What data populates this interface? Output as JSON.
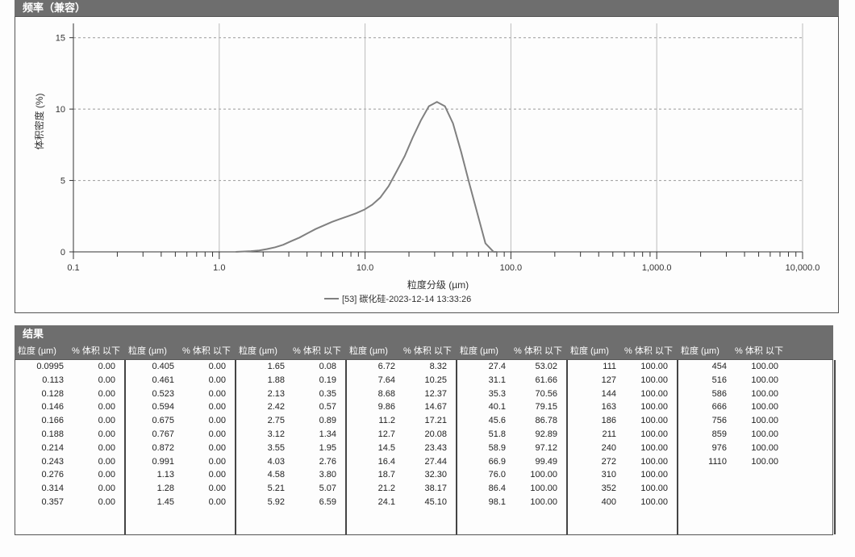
{
  "header": {
    "title": "频率（兼容）"
  },
  "results": {
    "title": "结果"
  },
  "table": {
    "col_size": "粒度 (µm)",
    "col_percent": "% 体积 以下",
    "columns": [
      {
        "sizes": [
          "0.0995",
          "0.113",
          "0.128",
          "0.146",
          "0.166",
          "0.188",
          "0.214",
          "0.243",
          "0.276",
          "0.314",
          "0.357"
        ],
        "values": [
          "0.00",
          "0.00",
          "0.00",
          "0.00",
          "0.00",
          "0.00",
          "0.00",
          "0.00",
          "0.00",
          "0.00",
          "0.00"
        ]
      },
      {
        "sizes": [
          "0.405",
          "0.461",
          "0.523",
          "0.594",
          "0.675",
          "0.767",
          "0.872",
          "0.991",
          "1.13",
          "1.28",
          "1.45"
        ],
        "values": [
          "0.00",
          "0.00",
          "0.00",
          "0.00",
          "0.00",
          "0.00",
          "0.00",
          "0.00",
          "0.00",
          "0.00",
          "0.00"
        ]
      },
      {
        "sizes": [
          "1.65",
          "1.88",
          "2.13",
          "2.42",
          "2.75",
          "3.12",
          "3.55",
          "4.03",
          "4.58",
          "5.21",
          "5.92"
        ],
        "values": [
          "0.08",
          "0.19",
          "0.35",
          "0.57",
          "0.89",
          "1.34",
          "1.95",
          "2.76",
          "3.80",
          "5.07",
          "6.59"
        ]
      },
      {
        "sizes": [
          "6.72",
          "7.64",
          "8.68",
          "9.86",
          "11.2",
          "12.7",
          "14.5",
          "16.4",
          "18.7",
          "21.2",
          "24.1"
        ],
        "values": [
          "8.32",
          "10.25",
          "12.37",
          "14.67",
          "17.21",
          "20.08",
          "23.43",
          "27.44",
          "32.30",
          "38.17",
          "45.10"
        ]
      },
      {
        "sizes": [
          "27.4",
          "31.1",
          "35.3",
          "40.1",
          "45.6",
          "51.8",
          "58.9",
          "66.9",
          "76.0",
          "86.4",
          "98.1"
        ],
        "values": [
          "53.02",
          "61.66",
          "70.56",
          "79.15",
          "86.78",
          "92.89",
          "97.12",
          "99.49",
          "100.00",
          "100.00",
          "100.00"
        ]
      },
      {
        "sizes": [
          "111",
          "127",
          "144",
          "163",
          "186",
          "211",
          "240",
          "272",
          "310",
          "352",
          "400"
        ],
        "values": [
          "100.00",
          "100.00",
          "100.00",
          "100.00",
          "100.00",
          "100.00",
          "100.00",
          "100.00",
          "100.00",
          "100.00",
          "100.00"
        ]
      },
      {
        "sizes": [
          "454",
          "516",
          "586",
          "666",
          "756",
          "859",
          "976",
          "1110"
        ],
        "values": [
          "100.00",
          "100.00",
          "100.00",
          "100.00",
          "100.00",
          "100.00",
          "100.00",
          "100.00"
        ]
      }
    ]
  },
  "chart_data": {
    "type": "line",
    "title": "",
    "xlabel": "粒度分级 (µm)",
    "ylabel": "体积密度 (%)",
    "x_scale": "log",
    "xlim": [
      0.1,
      10000
    ],
    "ylim": [
      0,
      16
    ],
    "x_ticks": [
      "0.1",
      "1.0",
      "10.0",
      "100.0",
      "1,000.0",
      "10,000.0"
    ],
    "y_ticks": [
      "0",
      "5",
      "10",
      "15"
    ],
    "grid": true,
    "legend_position": "bottom",
    "series": [
      {
        "name": "[53] 碳化硅-2023-12-14 13:33:26",
        "color": "#808080",
        "x": [
          1.3,
          1.65,
          1.88,
          2.13,
          2.42,
          2.75,
          3.12,
          3.55,
          4.03,
          4.58,
          5.21,
          5.92,
          6.72,
          7.64,
          8.68,
          9.86,
          11.2,
          12.7,
          14.5,
          16.4,
          18.7,
          21.2,
          24.1,
          27.4,
          31.1,
          35.3,
          40.1,
          45.6,
          51.8,
          58.9,
          66.9,
          76.0,
          80.0
        ],
        "y": [
          0.0,
          0.05,
          0.1,
          0.2,
          0.32,
          0.5,
          0.75,
          1.0,
          1.3,
          1.6,
          1.85,
          2.1,
          2.3,
          2.5,
          2.7,
          2.95,
          3.3,
          3.8,
          4.6,
          5.6,
          6.7,
          8.0,
          9.2,
          10.2,
          10.5,
          10.2,
          9.0,
          7.0,
          4.8,
          2.7,
          0.6,
          0.0,
          0.0
        ]
      }
    ]
  }
}
